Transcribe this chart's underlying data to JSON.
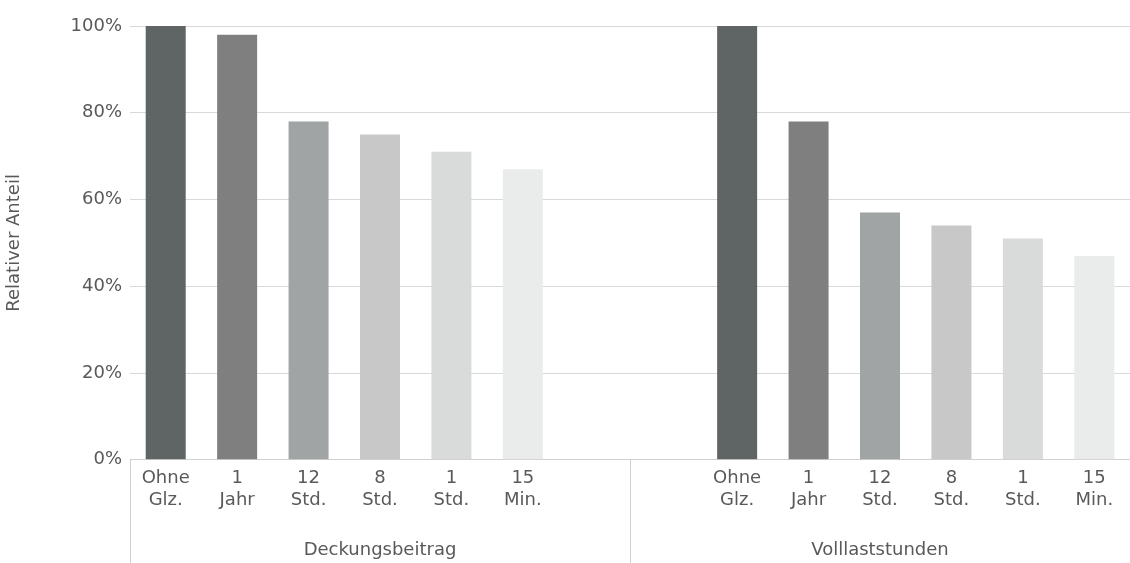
{
  "chart_data": {
    "type": "bar",
    "ylabel": "Relativer Anteil",
    "categories": [
      "Ohne Glz.",
      "1 Jahr",
      "12 Std.",
      "8 Std.",
      "1 Std.",
      "15 Min.",
      null,
      null,
      "Ohne Glz.",
      "1 Jahr",
      "12 Std.",
      "8 Std.",
      "1 Std.",
      "15 Min."
    ],
    "values": [
      100,
      98,
      78,
      75,
      71,
      67,
      null,
      null,
      100,
      78,
      57,
      54,
      51,
      47
    ],
    "colors": [
      "#5f6464",
      "#7f7f7f",
      "#a0a4a4",
      "#c8c8c8",
      "#d9dada",
      "#eaebeb",
      null,
      null,
      "#5f6464",
      "#7f7f7f",
      "#a0a4a4",
      "#c8c8c8",
      "#d9dada",
      "#eaebeb"
    ],
    "ylim": [
      0,
      100
    ],
    "yticks": [
      {
        "value": 0,
        "label": "0%"
      },
      {
        "value": 20,
        "label": "20%"
      },
      {
        "value": 40,
        "label": "40%"
      },
      {
        "value": 60,
        "label": "60%"
      },
      {
        "value": 80,
        "label": "80%"
      },
      {
        "value": 100,
        "label": "100%"
      }
    ],
    "annotations": [
      "Deckungsbeitrag",
      "Volllaststunden"
    ],
    "grid": "y",
    "legend": false
  }
}
